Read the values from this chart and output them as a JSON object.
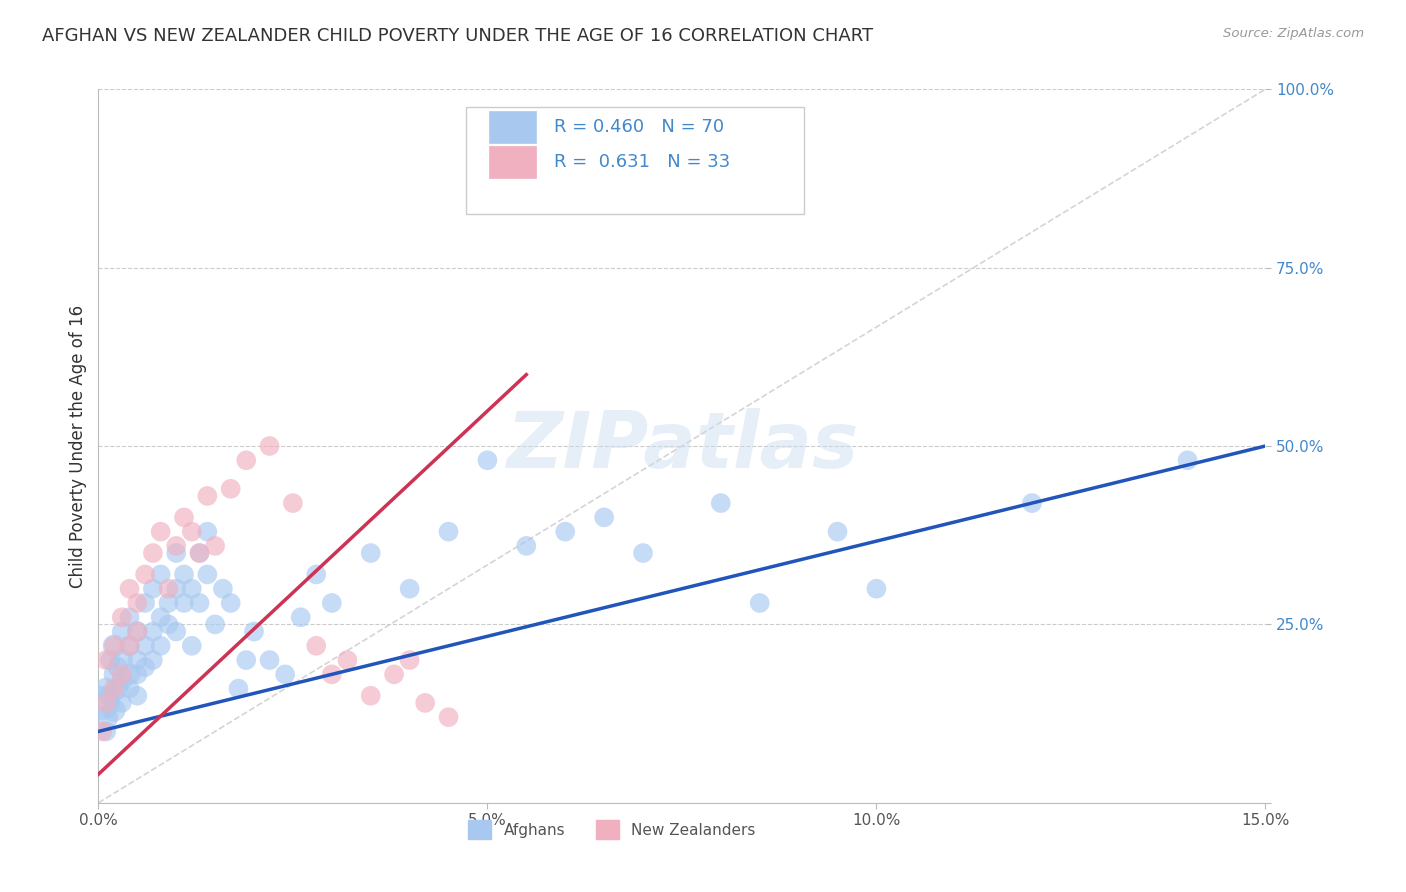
{
  "title": "AFGHAN VS NEW ZEALANDER CHILD POVERTY UNDER THE AGE OF 16 CORRELATION CHART",
  "source": "Source: ZipAtlas.com",
  "ylabel": "Child Poverty Under the Age of 16",
  "xlim": [
    0.0,
    0.15
  ],
  "ylim": [
    0.0,
    1.0
  ],
  "xticks": [
    0.0,
    0.05,
    0.1,
    0.15
  ],
  "xtick_labels": [
    "0.0%",
    "5.0%",
    "10.0%",
    "15.0%"
  ],
  "yticks": [
    0.0,
    0.25,
    0.5,
    0.75,
    1.0
  ],
  "ytick_labels": [
    "",
    "25.0%",
    "50.0%",
    "75.0%",
    "100.0%"
  ],
  "background_color": "#ffffff",
  "grid_color": "#cccccc",
  "watermark_text": "ZIPatlas",
  "afghan_color": "#a8c8f0",
  "nz_color": "#f0b0c0",
  "afghan_line_color": "#2255bb",
  "nz_line_color": "#cc3355",
  "ref_line_color": "#d0d0d0",
  "title_fontsize": 13,
  "axis_label_fontsize": 12,
  "tick_fontsize": 11,
  "afghan_line_x0": 0.0,
  "afghan_line_y0": 0.1,
  "afghan_line_x1": 0.15,
  "afghan_line_y1": 0.5,
  "nz_line_x0": 0.0,
  "nz_line_y0": 0.04,
  "nz_line_x1": 0.055,
  "nz_line_y1": 0.6,
  "afghans_x": [
    0.0005,
    0.001,
    0.001,
    0.001,
    0.0015,
    0.0015,
    0.002,
    0.002,
    0.002,
    0.0025,
    0.0025,
    0.003,
    0.003,
    0.003,
    0.003,
    0.004,
    0.004,
    0.004,
    0.004,
    0.005,
    0.005,
    0.005,
    0.005,
    0.006,
    0.006,
    0.006,
    0.007,
    0.007,
    0.007,
    0.008,
    0.008,
    0.008,
    0.009,
    0.009,
    0.01,
    0.01,
    0.01,
    0.011,
    0.011,
    0.012,
    0.012,
    0.013,
    0.013,
    0.014,
    0.014,
    0.015,
    0.016,
    0.017,
    0.018,
    0.019,
    0.02,
    0.022,
    0.024,
    0.026,
    0.028,
    0.03,
    0.035,
    0.04,
    0.045,
    0.05,
    0.055,
    0.06,
    0.065,
    0.07,
    0.08,
    0.085,
    0.095,
    0.1,
    0.12,
    0.14
  ],
  "afghans_y": [
    0.14,
    0.12,
    0.16,
    0.1,
    0.15,
    0.2,
    0.13,
    0.18,
    0.22,
    0.16,
    0.19,
    0.14,
    0.2,
    0.17,
    0.24,
    0.18,
    0.22,
    0.16,
    0.26,
    0.2,
    0.24,
    0.18,
    0.15,
    0.22,
    0.28,
    0.19,
    0.24,
    0.3,
    0.2,
    0.26,
    0.32,
    0.22,
    0.28,
    0.25,
    0.3,
    0.35,
    0.24,
    0.32,
    0.28,
    0.3,
    0.22,
    0.35,
    0.28,
    0.32,
    0.38,
    0.25,
    0.3,
    0.28,
    0.16,
    0.2,
    0.24,
    0.2,
    0.18,
    0.26,
    0.32,
    0.28,
    0.35,
    0.3,
    0.38,
    0.48,
    0.36,
    0.38,
    0.4,
    0.35,
    0.42,
    0.28,
    0.38,
    0.3,
    0.42,
    0.48
  ],
  "afghans_size": [
    600,
    300,
    250,
    200,
    250,
    200,
    280,
    220,
    260,
    240,
    220,
    200,
    260,
    220,
    200,
    240,
    220,
    200,
    200,
    200,
    220,
    200,
    200,
    200,
    200,
    200,
    200,
    200,
    200,
    200,
    200,
    200,
    200,
    200,
    200,
    200,
    200,
    200,
    200,
    200,
    200,
    200,
    200,
    200,
    200,
    200,
    200,
    200,
    200,
    200,
    200,
    200,
    200,
    200,
    200,
    200,
    200,
    200,
    200,
    200,
    200,
    200,
    200,
    200,
    200,
    200,
    200,
    200,
    200,
    200
  ],
  "nz_x": [
    0.0005,
    0.001,
    0.001,
    0.002,
    0.002,
    0.003,
    0.003,
    0.004,
    0.004,
    0.005,
    0.005,
    0.006,
    0.007,
    0.008,
    0.009,
    0.01,
    0.011,
    0.012,
    0.013,
    0.014,
    0.015,
    0.017,
    0.019,
    0.022,
    0.025,
    0.028,
    0.03,
    0.032,
    0.035,
    0.038,
    0.04,
    0.042,
    0.045
  ],
  "nz_y": [
    0.1,
    0.14,
    0.2,
    0.16,
    0.22,
    0.18,
    0.26,
    0.22,
    0.3,
    0.24,
    0.28,
    0.32,
    0.35,
    0.38,
    0.3,
    0.36,
    0.4,
    0.38,
    0.35,
    0.43,
    0.36,
    0.44,
    0.48,
    0.5,
    0.42,
    0.22,
    0.18,
    0.2,
    0.15,
    0.18,
    0.2,
    0.14,
    0.12
  ],
  "nz_size": [
    200,
    200,
    200,
    200,
    200,
    200,
    200,
    200,
    200,
    200,
    200,
    200,
    200,
    200,
    200,
    200,
    200,
    200,
    200,
    200,
    200,
    200,
    200,
    200,
    200,
    200,
    200,
    200,
    200,
    200,
    200,
    200,
    200
  ]
}
